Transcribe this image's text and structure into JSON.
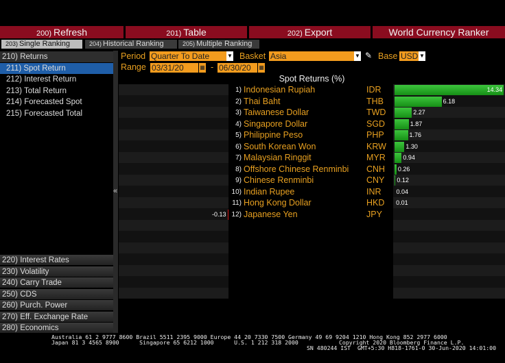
{
  "toolbar": [
    {
      "code": "200)",
      "label": "Refresh"
    },
    {
      "code": "201)",
      "label": "Table"
    },
    {
      "code": "202)",
      "label": "Export"
    }
  ],
  "app_title": "World Currency Ranker",
  "tabs": [
    {
      "code": "203)",
      "label": "Single Ranking"
    },
    {
      "code": "204)",
      "label": "Historical Ranking"
    },
    {
      "code": "205)",
      "label": "Multiple Ranking"
    }
  ],
  "menu_top": [
    "210) Returns",
    "211) Spot Return",
    "212) Interest Return",
    "213) Total Return",
    "214) Forecasted Spot",
    "215) Forecasted Total"
  ],
  "menu_bottom": [
    "220) Interest Rates",
    "230) Volatility",
    "240) Carry Trade",
    "250) CDS",
    "260) Purch. Power",
    "270) Eff. Exchange Rate",
    "280) Economics"
  ],
  "collapse": "«",
  "controls": {
    "period_label": "Period",
    "period": "Quarter To Date",
    "basket_label": "Basket",
    "basket": "Asia",
    "base_label": "Base",
    "base": "USD",
    "range_label": "Range",
    "range_start": "03/31/20",
    "range_sep": "-",
    "range_end": "06/30/20"
  },
  "ranking": {
    "title": "Spot Returns (%)",
    "rows": [
      {
        "rank": "1)",
        "name": "Indonesian Rupiah",
        "code": "IDR",
        "value": 14.34,
        "value_label": "14.34"
      },
      {
        "rank": "2)",
        "name": "Thai Baht",
        "code": "THB",
        "value": 6.18,
        "value_label": "6.18"
      },
      {
        "rank": "3)",
        "name": "Taiwanese Dollar",
        "code": "TWD",
        "value": 2.27,
        "value_label": "2.27"
      },
      {
        "rank": "4)",
        "name": "Singapore Dollar",
        "code": "SGD",
        "value": 1.87,
        "value_label": "1.87"
      },
      {
        "rank": "5)",
        "name": "Philippine Peso",
        "code": "PHP",
        "value": 1.76,
        "value_label": "1.76"
      },
      {
        "rank": "6)",
        "name": "South Korean Won",
        "code": "KRW",
        "value": 1.3,
        "value_label": "1.30"
      },
      {
        "rank": "7)",
        "name": "Malaysian Ringgit",
        "code": "MYR",
        "value": 0.94,
        "value_label": "0.94"
      },
      {
        "rank": "8)",
        "name": "Offshore Chinese Renminbi",
        "code": "CNH",
        "value": 0.26,
        "value_label": "0.26"
      },
      {
        "rank": "9)",
        "name": "Chinese Renminbi",
        "code": "CNY",
        "value": 0.12,
        "value_label": "0.12"
      },
      {
        "rank": "10)",
        "name": "Indian Rupee",
        "code": "INR",
        "value": 0.04,
        "value_label": "0.04"
      },
      {
        "rank": "11)",
        "name": "Hong Kong Dollar",
        "code": "HKD",
        "value": 0.01,
        "value_label": "0.01"
      },
      {
        "rank": "12)",
        "name": "Japanese Yen",
        "code": "JPY",
        "value": -0.13,
        "value_label": "-0.13"
      }
    ]
  },
  "footer": [
    "Australia 61 2 9777 8600 Brazil 5511 2395 9000 Europe 44 20 7330 7500 Germany 49 69 9204 1210 Hong Kong 852 2977 6000",
    "Japan 81 3 4565 8900      Singapore 65 6212 1000      U.S. 1 212 318 2000            Copyright 2020 Bloomberg Finance L.P.",
    "SN 480244 IST  GMT+5:30 H818-1761-0 30-Jun-2020 14:01:00"
  ]
}
